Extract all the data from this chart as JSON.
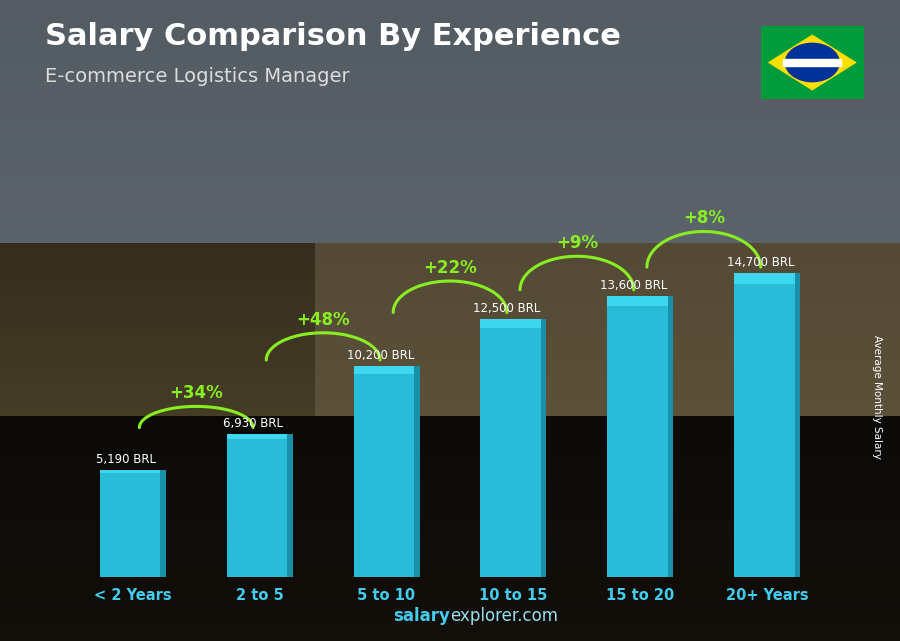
{
  "categories": [
    "< 2 Years",
    "2 to 5",
    "5 to 10",
    "10 to 15",
    "15 to 20",
    "20+ Years"
  ],
  "values": [
    5190,
    6930,
    10200,
    12500,
    13600,
    14700
  ],
  "bar_color_top": "#3dd8f0",
  "bar_color_mid": "#29bcd8",
  "bar_color_bot": "#1a8fa8",
  "title": "Salary Comparison By Experience",
  "subtitle": "E-commerce Logistics Manager",
  "ylabel": "Average Monthly Salary",
  "salary_labels": [
    "5,190 BRL",
    "6,930 BRL",
    "10,200 BRL",
    "12,500 BRL",
    "13,600 BRL",
    "14,700 BRL"
  ],
  "pct_labels": [
    "+34%",
    "+48%",
    "+22%",
    "+9%",
    "+8%"
  ],
  "footer_bold": "salary",
  "footer_normal": "explorer.com",
  "bg_color": "#1a1a1a",
  "overlay_color": "#2a2010",
  "title_color": "#ffffff",
  "subtitle_color": "#dddddd",
  "salary_label_color": "#ffffff",
  "pct_color": "#88ee22",
  "arrow_color": "#88ee22",
  "xtick_color": "#44ccee",
  "footer_color_bold": "#44ccee",
  "footer_color_normal": "#99ddee",
  "ylim": [
    0,
    18000
  ],
  "bar_width": 0.52
}
